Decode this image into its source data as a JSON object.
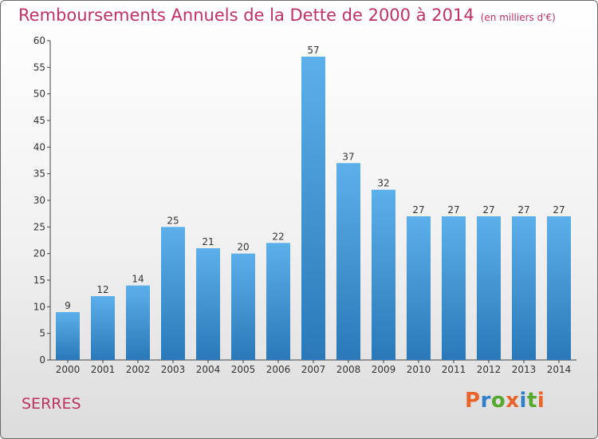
{
  "header": {
    "title": "Remboursements Annuels de la Dette de 2000 à 2014",
    "unit": "(en milliers d'€)"
  },
  "footer": {
    "commune": "SERRES",
    "logo_text": "Proxiti",
    "logo_colors": [
      "#e8642a",
      "#2f7fc9",
      "#56a82e",
      "#e8642a",
      "#2f7fc9",
      "#56a82e",
      "#e8642a"
    ]
  },
  "chart_data": {
    "type": "bar",
    "title": "Remboursements Annuels de la Dette de 2000 à 2014",
    "subtitle": "(en milliers d'€)",
    "xlabel": "",
    "ylabel": "",
    "categories": [
      "2000",
      "2001",
      "2002",
      "2003",
      "2004",
      "2005",
      "2006",
      "2007",
      "2008",
      "2009",
      "2010",
      "2011",
      "2012",
      "2013",
      "2014"
    ],
    "values": [
      9,
      12,
      14,
      25,
      21,
      20,
      22,
      57,
      37,
      32,
      27,
      27,
      27,
      27,
      27
    ],
    "ylim": [
      0,
      60
    ],
    "yticks": [
      0,
      5,
      10,
      15,
      20,
      25,
      30,
      35,
      40,
      45,
      50,
      55,
      60
    ],
    "grid": false,
    "bar_color_top": "#5cb0ea",
    "bar_color_bottom": "#2a78b8"
  }
}
